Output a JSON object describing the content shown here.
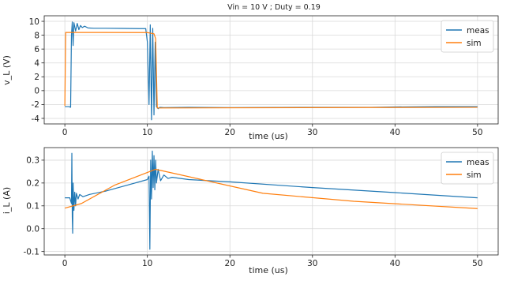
{
  "title": "Vin = 10 V ; Duty = 0.19",
  "colors": {
    "meas": "#1f77b4",
    "sim": "#ff7f0e"
  },
  "chart_data": [
    {
      "type": "line",
      "xlabel": "time (us)",
      "ylabel": "v_L (V)",
      "xlim": [
        -2.5,
        52.5
      ],
      "ylim": [
        -4.8,
        10.8
      ],
      "xticks": [
        0,
        10,
        20,
        30,
        40,
        50
      ],
      "yticks": [
        -4,
        -2,
        0,
        2,
        4,
        6,
        8,
        10
      ],
      "grid": true,
      "legend": "top-right",
      "series": [
        {
          "name": "meas",
          "color": "#1f77b4",
          "points": [
            [
              0,
              -2.3
            ],
            [
              0.5,
              -2.3
            ],
            [
              0.7,
              -2.4
            ],
            [
              0.8,
              8.0
            ],
            [
              0.9,
              9.9
            ],
            [
              1.0,
              6.5
            ],
            [
              1.1,
              9.8
            ],
            [
              1.3,
              8.6
            ],
            [
              1.5,
              9.7
            ],
            [
              1.7,
              8.8
            ],
            [
              1.9,
              9.4
            ],
            [
              2.1,
              9.1
            ],
            [
              2.4,
              9.3
            ],
            [
              2.8,
              9.05
            ],
            [
              3.5,
              9.0
            ],
            [
              5,
              9.0
            ],
            [
              7,
              8.98
            ],
            [
              9,
              8.95
            ],
            [
              9.8,
              8.95
            ],
            [
              10.0,
              7.0
            ],
            [
              10.2,
              -2.0
            ],
            [
              10.35,
              9.5
            ],
            [
              10.5,
              -4.2
            ],
            [
              10.65,
              9.0
            ],
            [
              10.8,
              -3.5
            ],
            [
              10.95,
              7.0
            ],
            [
              11.1,
              -2.3
            ],
            [
              11.3,
              -2.6
            ],
            [
              11.5,
              -2.4
            ],
            [
              12,
              -2.45
            ],
            [
              15,
              -2.4
            ],
            [
              20,
              -2.45
            ],
            [
              30,
              -2.4
            ],
            [
              37,
              -2.4
            ],
            [
              40,
              -2.35
            ],
            [
              45,
              -2.3
            ],
            [
              50,
              -2.3
            ]
          ]
        },
        {
          "name": "sim",
          "color": "#ff7f0e",
          "points": [
            [
              0,
              -2.2
            ],
            [
              0.1,
              8.4
            ],
            [
              10,
              8.38
            ],
            [
              10.8,
              8.2
            ],
            [
              11.0,
              7.5
            ],
            [
              11.2,
              -2.5
            ],
            [
              11.5,
              -2.5
            ],
            [
              50,
              -2.4
            ]
          ]
        }
      ]
    },
    {
      "type": "line",
      "xlabel": "time (us)",
      "ylabel": "i_L (A)",
      "xlim": [
        -2.5,
        52.5
      ],
      "ylim": [
        -0.115,
        0.355
      ],
      "xticks": [
        0,
        10,
        20,
        30,
        40,
        50
      ],
      "yticks": [
        -0.1,
        0.0,
        0.1,
        0.2,
        0.3
      ],
      "grid": true,
      "legend": "top-right",
      "series": [
        {
          "name": "meas",
          "color": "#1f77b4",
          "points": [
            [
              0,
              0.135
            ],
            [
              0.6,
              0.135
            ],
            [
              0.8,
              0.11
            ],
            [
              0.85,
              0.33
            ],
            [
              0.9,
              0.05
            ],
            [
              0.95,
              -0.02
            ],
            [
              1.0,
              0.2
            ],
            [
              1.1,
              0.08
            ],
            [
              1.2,
              0.16
            ],
            [
              1.3,
              0.1
            ],
            [
              1.4,
              0.155
            ],
            [
              1.6,
              0.13
            ],
            [
              1.8,
              0.15
            ],
            [
              2.2,
              0.14
            ],
            [
              3,
              0.15
            ],
            [
              5,
              0.165
            ],
            [
              8,
              0.195
            ],
            [
              10,
              0.215
            ],
            [
              10.2,
              0.23
            ],
            [
              10.3,
              -0.09
            ],
            [
              10.4,
              0.3
            ],
            [
              10.5,
              0.13
            ],
            [
              10.6,
              0.34
            ],
            [
              10.7,
              0.18
            ],
            [
              10.8,
              0.32
            ],
            [
              10.9,
              0.17
            ],
            [
              11.0,
              0.3
            ],
            [
              11.1,
              0.2
            ],
            [
              11.3,
              0.26
            ],
            [
              11.6,
              0.21
            ],
            [
              12,
              0.235
            ],
            [
              12.5,
              0.22
            ],
            [
              13,
              0.225
            ],
            [
              15,
              0.215
            ],
            [
              20,
              0.205
            ],
            [
              30,
              0.18
            ],
            [
              40,
              0.158
            ],
            [
              50,
              0.135
            ]
          ]
        },
        {
          "name": "sim",
          "color": "#ff7f0e",
          "points": [
            [
              0,
              0.09
            ],
            [
              2,
              0.11
            ],
            [
              6,
              0.19
            ],
            [
              11,
              0.26
            ],
            [
              24,
              0.155
            ],
            [
              35,
              0.12
            ],
            [
              50,
              0.088
            ]
          ]
        }
      ]
    }
  ]
}
